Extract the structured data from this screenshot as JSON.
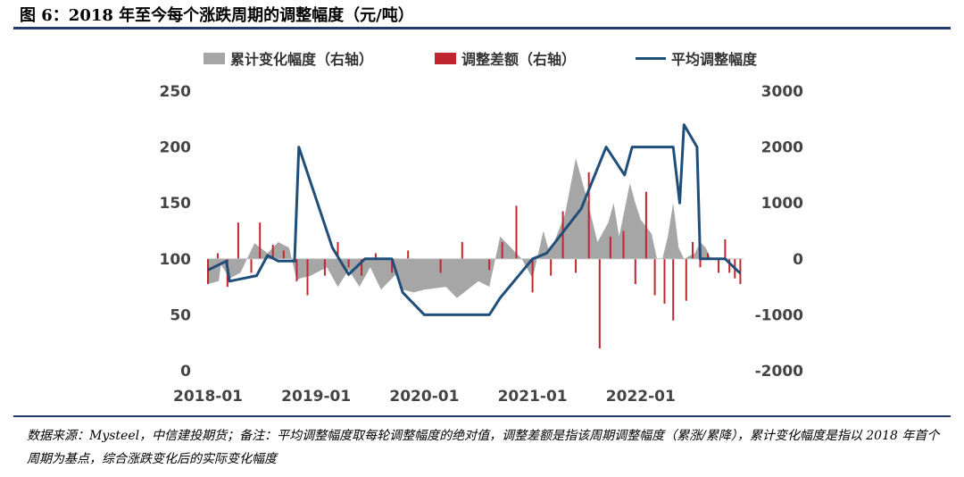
{
  "title": "图 6：2018 年至今每个涨跌周期的调整幅度（元/吨）",
  "source_note": "数据来源：Mysteel，中信建投期货；备注：平均调整幅度取每轮调整幅度的绝对值，调整差额是指该周期调整幅度（累涨/累降），累计变化幅度是指以 2018 年首个周期为基点，综合涨跌变化后的实际变化幅度",
  "colors": {
    "area": "#a6a6a6",
    "bar": "#c0262d",
    "line": "#1f4e79"
  },
  "chart_data": {
    "type": "line",
    "legend": [
      "累计变化幅度（右轴）",
      "调整差额（右轴）",
      "平均调整幅度"
    ],
    "legend_placement": "top",
    "x_ticks": [
      "2018-01",
      "2019-01",
      "2020-01",
      "2021-01",
      "2022-01"
    ],
    "x_tick_years": [
      2018,
      2019,
      2020,
      2021,
      2022
    ],
    "x_range": [
      2018.0,
      2022.95
    ],
    "y_left": {
      "ticks": [
        0,
        50,
        100,
        150,
        200,
        250
      ],
      "range": [
        0,
        250
      ]
    },
    "y_right": {
      "ticks": [
        -2000,
        -1000,
        0,
        1000,
        2000,
        3000
      ],
      "range": [
        -2000,
        3000
      ]
    },
    "grid": false,
    "series": [
      {
        "name": "平均调整幅度",
        "axis": "left",
        "type": "line",
        "x": [
          2018.0,
          2018.17,
          2018.2,
          2018.3,
          2018.45,
          2018.55,
          2018.65,
          2018.8,
          2018.84,
          2019.15,
          2019.3,
          2019.45,
          2019.7,
          2019.8,
          2020.0,
          2020.3,
          2020.6,
          2020.7,
          2021.0,
          2021.13,
          2021.45,
          2021.68,
          2021.85,
          2021.92,
          2022.05,
          2022.3,
          2022.36,
          2022.4,
          2022.52,
          2022.55,
          2022.74,
          2022.78,
          2022.92
        ],
        "y": [
          90,
          98,
          80,
          82,
          85,
          103,
          98,
          98,
          200,
          110,
          86,
          100,
          100,
          70,
          50,
          50,
          50,
          65,
          100,
          105,
          145,
          200,
          175,
          200,
          200,
          200,
          150,
          220,
          200,
          100,
          100,
          100,
          87
        ]
      },
      {
        "name": "累计变化幅度（右轴）",
        "axis": "right",
        "type": "area",
        "x": [
          2018.0,
          2018.1,
          2018.12,
          2018.2,
          2018.3,
          2018.43,
          2018.55,
          2018.65,
          2018.75,
          2018.82,
          2018.85,
          2018.95,
          2019.0,
          2019.1,
          2019.2,
          2019.3,
          2019.4,
          2019.5,
          2019.6,
          2019.7,
          2019.75,
          2019.8,
          2019.9,
          2020.0,
          2020.2,
          2020.3,
          2020.4,
          2020.5,
          2020.6,
          2020.7,
          2020.8,
          2020.9,
          2021.0,
          2021.1,
          2021.15,
          2021.2,
          2021.3,
          2021.4,
          2021.5,
          2021.6,
          2021.7,
          2021.75,
          2021.8,
          2021.9,
          2021.95,
          2022.0,
          2022.1,
          2022.15,
          2022.2,
          2022.25,
          2022.3,
          2022.35,
          2022.4,
          2022.5,
          2022.55,
          2022.6,
          2022.65,
          2022.7,
          2022.75,
          2022.8,
          2022.85,
          2022.92
        ],
        "y": [
          -450,
          -400,
          -100,
          -350,
          -250,
          280,
          100,
          300,
          200,
          -380,
          -350,
          -300,
          -250,
          -150,
          -500,
          -200,
          -500,
          -150,
          -550,
          -350,
          -250,
          -550,
          -600,
          -550,
          -500,
          -700,
          -550,
          -400,
          -500,
          400,
          200,
          0,
          -350,
          500,
          150,
          300,
          800,
          1800,
          1100,
          300,
          650,
          1000,
          400,
          1350,
          1000,
          700,
          450,
          0,
          0,
          400,
          1000,
          200,
          0,
          100,
          300,
          200,
          0,
          0,
          0,
          0,
          0,
          0
        ]
      },
      {
        "name": "调整差额（右轴）",
        "axis": "right",
        "type": "bar",
        "x": [
          2018.0,
          2018.09,
          2018.18,
          2018.28,
          2018.4,
          2018.48,
          2018.6,
          2018.7,
          2018.82,
          2018.92,
          2019.08,
          2019.2,
          2019.3,
          2019.42,
          2019.55,
          2019.7,
          2019.85,
          2020.15,
          2020.35,
          2020.6,
          2020.72,
          2020.85,
          2021.0,
          2021.17,
          2021.28,
          2021.4,
          2021.52,
          2021.62,
          2021.72,
          2021.84,
          2021.95,
          2022.05,
          2022.13,
          2022.22,
          2022.3,
          2022.42,
          2022.48,
          2022.55,
          2022.62,
          2022.72,
          2022.78,
          2022.82,
          2022.87,
          2022.92
        ],
        "y": [
          -450,
          100,
          -500,
          650,
          -250,
          650,
          250,
          150,
          -400,
          -650,
          -300,
          300,
          -150,
          -300,
          100,
          -250,
          150,
          -250,
          300,
          -200,
          300,
          950,
          -600,
          -300,
          850,
          -250,
          1550,
          -1600,
          400,
          500,
          -450,
          1200,
          -650,
          -800,
          -1100,
          -750,
          300,
          -150,
          100,
          -250,
          350,
          -250,
          -350,
          -450
        ]
      }
    ]
  }
}
